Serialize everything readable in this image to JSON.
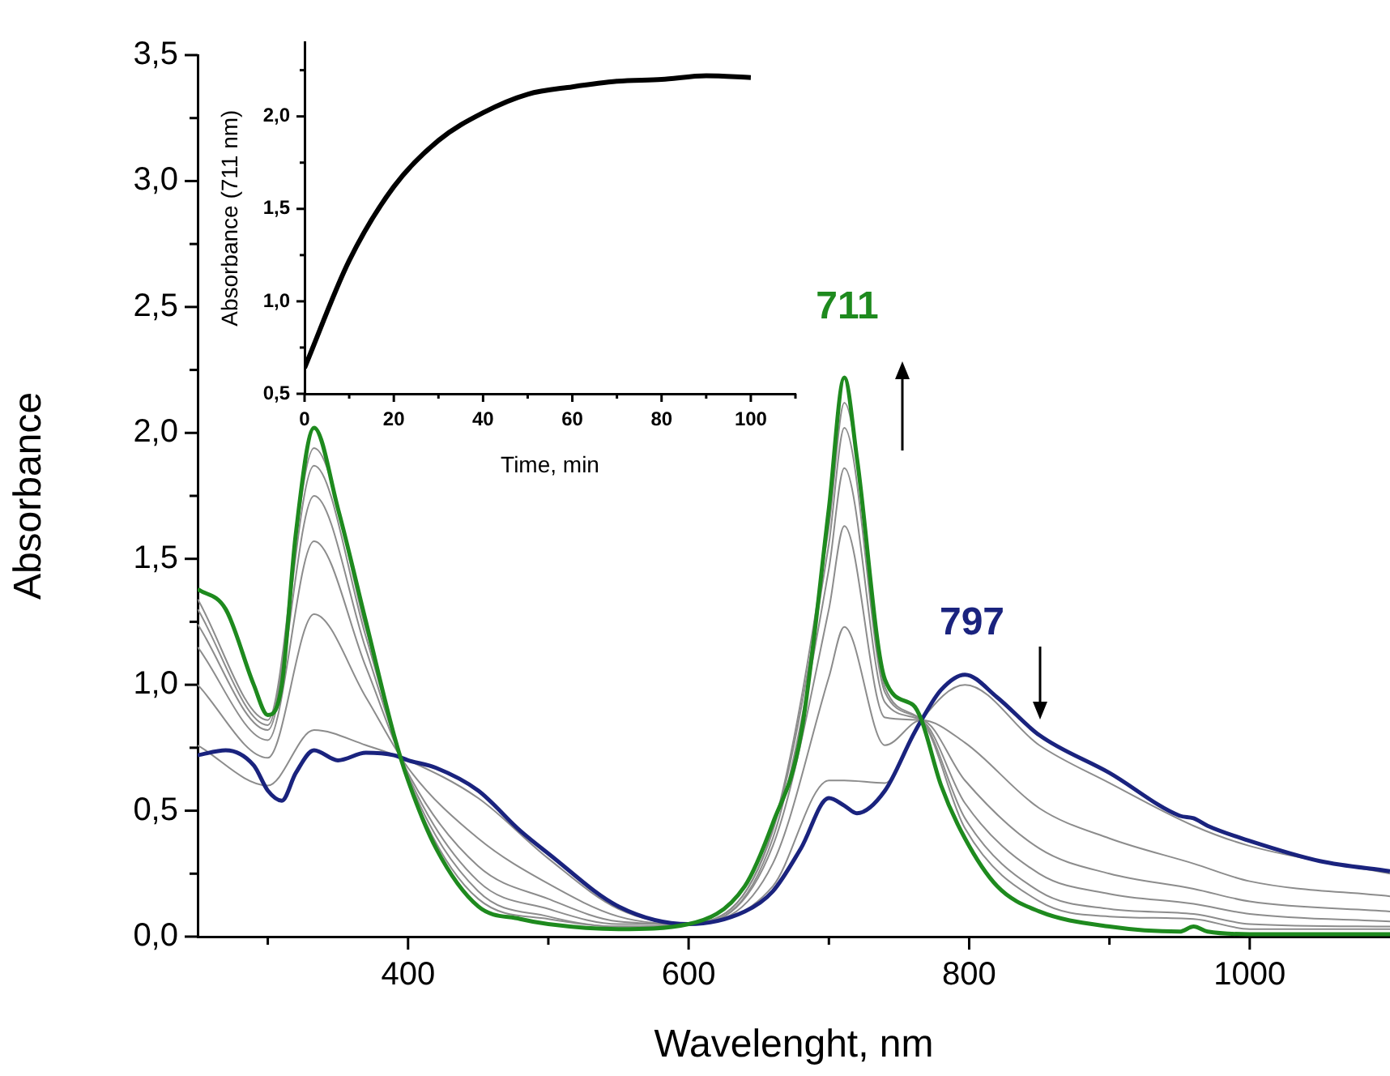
{
  "chart_data": [
    {
      "type": "line",
      "xlabel": "Wavelenght, nm",
      "ylabel": "Absorbance",
      "xlim": [
        250,
        1100
      ],
      "ylim": [
        0,
        3.5
      ],
      "xticks": [
        {
          "value": 300,
          "label": null
        },
        400,
        {
          "value": 500,
          "label": null
        },
        600,
        {
          "value": 700,
          "label": null
        },
        800,
        {
          "value": 900,
          "label": null
        },
        1000
      ],
      "yticks": [
        {
          "value": 0,
          "label": "0,0"
        },
        {
          "value": 0.25,
          "label": null
        },
        {
          "value": 0.5,
          "label": "0,5"
        },
        {
          "value": 0.75,
          "label": null
        },
        {
          "value": 1,
          "label": "1,0"
        },
        {
          "value": 1.25,
          "label": null
        },
        {
          "value": 1.5,
          "label": "1,5"
        },
        {
          "value": 1.75,
          "label": null
        },
        {
          "value": 2,
          "label": "2,0"
        },
        {
          "value": 2.25,
          "label": null
        },
        {
          "value": 2.5,
          "label": "2,5"
        },
        {
          "value": 2.75,
          "label": null
        },
        {
          "value": 3,
          "label": "3,0"
        },
        {
          "value": 3.25,
          "label": null
        },
        {
          "value": 3.5,
          "label": "3,5"
        }
      ],
      "grid": false,
      "legend": false,
      "marker": "none",
      "line_style": "solid",
      "annotations": [
        "711",
        "797"
      ],
      "series": [
        {
          "color": "#1e8a1e",
          "x": [
            250,
            270,
            290,
            300,
            310,
            320,
            333,
            350,
            370,
            390,
            400,
            420,
            450,
            480,
            500,
            550,
            600,
            640,
            660,
            680,
            700,
            711,
            720,
            740,
            760,
            766,
            780,
            797,
            820,
            850,
            900,
            950,
            960,
            970,
            1000,
            1050,
            1100
          ],
          "values": [
            1.38,
            1.3,
            1.0,
            0.88,
            1.0,
            1.6,
            2.02,
            1.7,
            1.25,
            0.8,
            0.62,
            0.35,
            0.12,
            0.07,
            0.05,
            0.03,
            0.05,
            0.2,
            0.45,
            0.8,
            1.7,
            2.22,
            1.9,
            1.02,
            0.92,
            0.86,
            0.6,
            0.39,
            0.2,
            0.1,
            0.04,
            0.02,
            0.04,
            0.02,
            0.01,
            0.01,
            0.01
          ]
        },
        {
          "color": "#1a237e",
          "x": [
            250,
            270,
            290,
            300,
            310,
            320,
            333,
            350,
            370,
            390,
            400,
            420,
            450,
            480,
            500,
            550,
            600,
            640,
            660,
            680,
            700,
            711,
            720,
            740,
            760,
            766,
            780,
            797,
            820,
            850,
            900,
            950,
            960,
            970,
            1000,
            1050,
            1100
          ],
          "values": [
            0.72,
            0.74,
            0.68,
            0.58,
            0.54,
            0.65,
            0.74,
            0.7,
            0.73,
            0.72,
            0.7,
            0.67,
            0.58,
            0.42,
            0.33,
            0.12,
            0.05,
            0.1,
            0.18,
            0.35,
            0.55,
            0.52,
            0.49,
            0.58,
            0.8,
            0.86,
            0.98,
            1.04,
            0.95,
            0.8,
            0.65,
            0.48,
            0.47,
            0.44,
            0.38,
            0.3,
            0.26
          ]
        },
        {
          "color": "#8c8c8c",
          "x": [
            250,
            300,
            333,
            370,
            400,
            450,
            500,
            550,
            600,
            660,
            700,
            711,
            740,
            766,
            797,
            850,
            900,
            960,
            1000,
            1100
          ],
          "values": [
            1.34,
            0.86,
            1.94,
            1.22,
            0.62,
            0.15,
            0.07,
            0.04,
            0.05,
            0.43,
            1.63,
            2.12,
            0.99,
            0.86,
            0.43,
            0.14,
            0.08,
            0.07,
            0.03,
            0.03
          ]
        },
        {
          "color": "#8c8c8c",
          "x": [
            250,
            300,
            333,
            370,
            400,
            450,
            500,
            550,
            600,
            660,
            700,
            711,
            740,
            766,
            797,
            850,
            900,
            960,
            1000,
            1100
          ],
          "values": [
            1.3,
            0.84,
            1.87,
            1.19,
            0.63,
            0.18,
            0.08,
            0.04,
            0.05,
            0.42,
            1.56,
            2.02,
            0.97,
            0.86,
            0.47,
            0.18,
            0.11,
            0.09,
            0.05,
            0.04
          ]
        },
        {
          "color": "#8c8c8c",
          "x": [
            250,
            300,
            333,
            370,
            400,
            450,
            500,
            550,
            600,
            660,
            700,
            711,
            740,
            766,
            797,
            850,
            900,
            960,
            1000,
            1100
          ],
          "values": [
            1.24,
            0.82,
            1.75,
            1.14,
            0.64,
            0.22,
            0.11,
            0.05,
            0.05,
            0.39,
            1.46,
            1.86,
            0.93,
            0.86,
            0.53,
            0.25,
            0.17,
            0.13,
            0.09,
            0.06
          ]
        },
        {
          "color": "#8c8c8c",
          "x": [
            250,
            300,
            333,
            370,
            400,
            450,
            500,
            550,
            600,
            660,
            700,
            711,
            740,
            766,
            797,
            850,
            900,
            960,
            1000,
            1100
          ],
          "values": [
            1.15,
            0.78,
            1.57,
            1.07,
            0.65,
            0.28,
            0.15,
            0.06,
            0.05,
            0.36,
            1.3,
            1.63,
            0.87,
            0.86,
            0.62,
            0.35,
            0.25,
            0.19,
            0.14,
            0.1
          ]
        },
        {
          "color": "#8c8c8c",
          "x": [
            250,
            300,
            333,
            370,
            400,
            450,
            500,
            550,
            600,
            660,
            700,
            711,
            740,
            766,
            797,
            850,
            900,
            960,
            1000,
            1100
          ],
          "values": [
            1.0,
            0.71,
            1.28,
            0.95,
            0.67,
            0.39,
            0.21,
            0.08,
            0.05,
            0.29,
            1.03,
            1.23,
            0.76,
            0.86,
            0.77,
            0.51,
            0.39,
            0.29,
            0.22,
            0.16
          ]
        },
        {
          "color": "#8c8c8c",
          "x": [
            250,
            300,
            333,
            370,
            400,
            450,
            500,
            550,
            600,
            660,
            700,
            711,
            740,
            766,
            797,
            850,
            900,
            960,
            1000,
            1100
          ],
          "values": [
            0.76,
            0.6,
            0.82,
            0.76,
            0.7,
            0.55,
            0.31,
            0.11,
            0.05,
            0.2,
            0.62,
            0.62,
            0.61,
            0.86,
            1.0,
            0.76,
            0.61,
            0.44,
            0.36,
            0.25
          ]
        }
      ]
    },
    {
      "type": "line",
      "xlabel": "Time, min",
      "ylabel": "Absorbance (711 nm)",
      "xlim": [
        0,
        110
      ],
      "ylim": [
        0.5,
        2.4
      ],
      "xticks": [
        0,
        {
          "value": 10,
          "label": null
        },
        20,
        {
          "value": 30,
          "label": null
        },
        40,
        {
          "value": 50,
          "label": null
        },
        60,
        {
          "value": 70,
          "label": null
        },
        80,
        {
          "value": 90,
          "label": null
        },
        100,
        {
          "value": 110,
          "label": null
        }
      ],
      "yticks": [
        {
          "value": 0.5,
          "label": "0,5"
        },
        {
          "value": 0.75,
          "label": null
        },
        {
          "value": 1,
          "label": "1,0"
        },
        {
          "value": 1.25,
          "label": null
        },
        {
          "value": 1.5,
          "label": "1,5"
        },
        {
          "value": 1.75,
          "label": null
        },
        {
          "value": 2,
          "label": "2,0"
        },
        {
          "value": 2.25,
          "label": null
        }
      ],
      "grid": false,
      "legend": false,
      "marker": "none",
      "line_style": "solid",
      "series": [
        {
          "color": "#000000",
          "x": [
            0,
            10,
            20,
            30,
            40,
            50,
            60,
            70,
            80,
            90,
            100
          ],
          "values": [
            0.64,
            1.22,
            1.62,
            1.87,
            2.02,
            2.12,
            2.16,
            2.19,
            2.2,
            2.22,
            2.21
          ]
        }
      ]
    }
  ]
}
